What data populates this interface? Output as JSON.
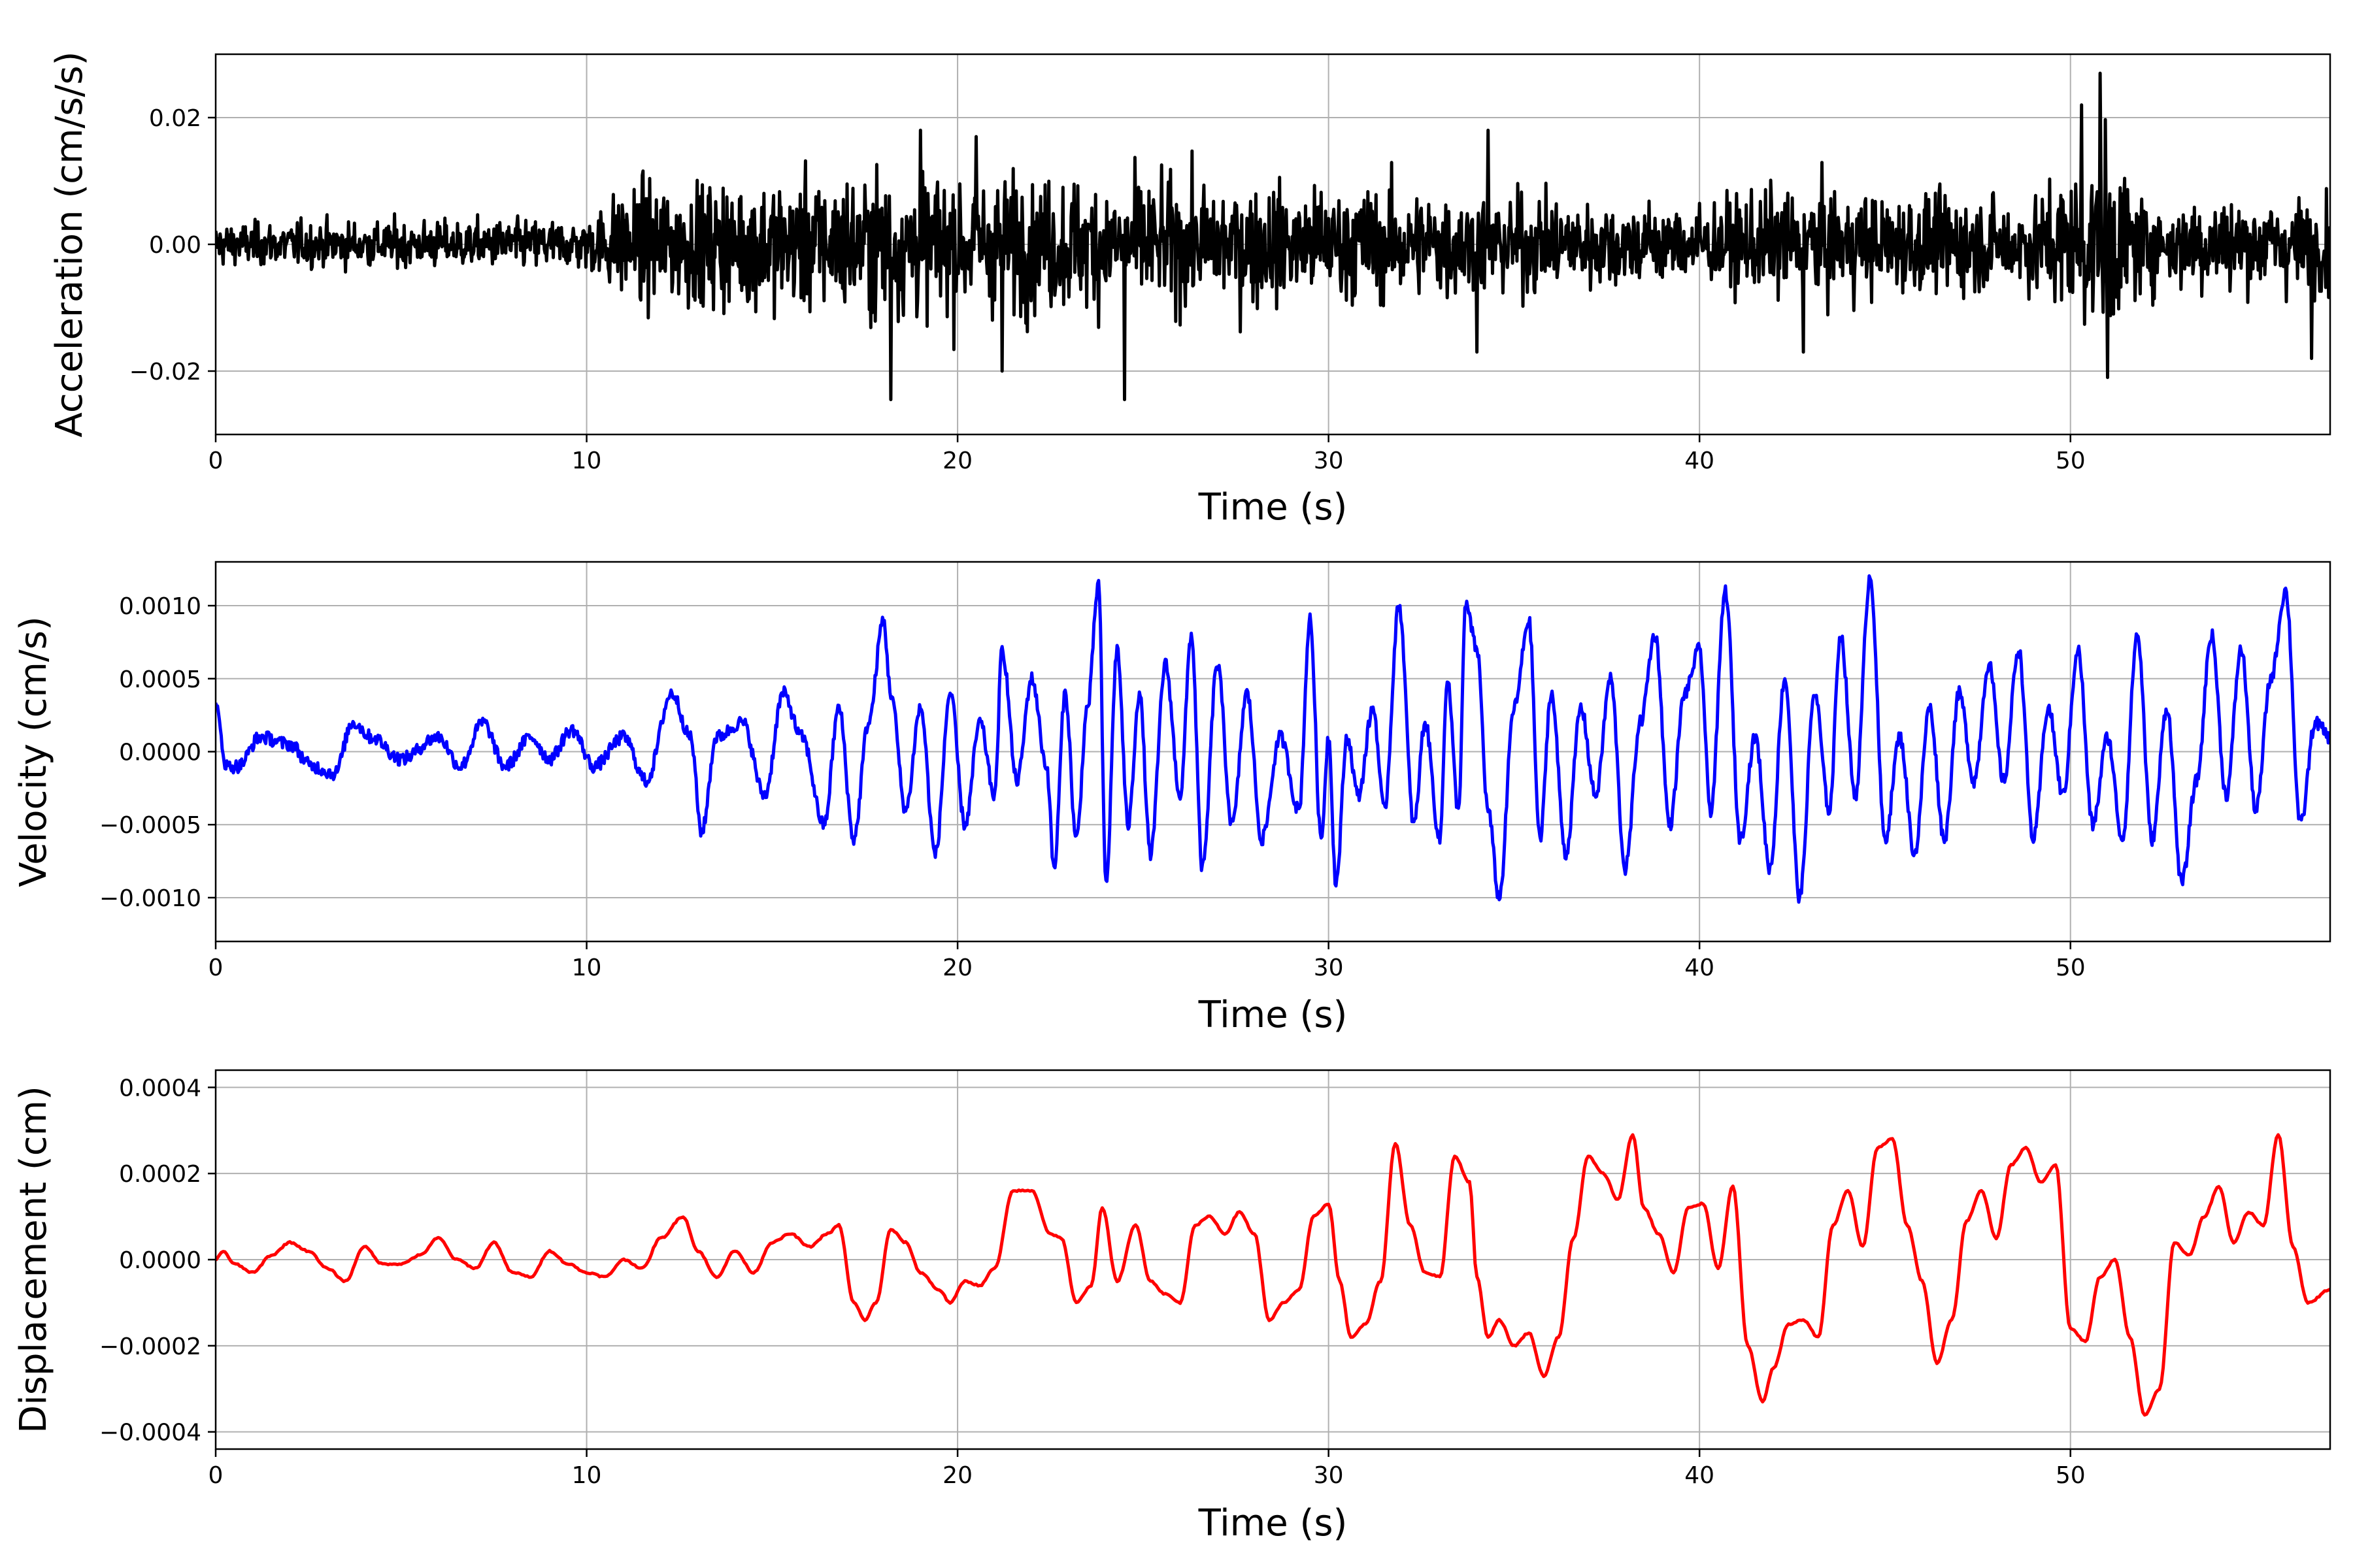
{
  "chart_data": [
    {
      "type": "line",
      "id": "acceleration",
      "xlabel": "Time (s)",
      "ylabel": "Acceleration (cm/s/s)",
      "xlim": [
        0,
        57
      ],
      "ylim": [
        -0.03,
        0.03
      ],
      "xticks": [
        0,
        10,
        20,
        30,
        40,
        50
      ],
      "xtick_labels": [
        "0",
        "10",
        "20",
        "30",
        "40",
        "50"
      ],
      "yticks": [
        -0.02,
        0.0,
        0.02
      ],
      "ytick_labels": [
        "−0.02",
        "0.00",
        "0.02"
      ],
      "grid": true,
      "color": "#000000",
      "sampling_dt": 0.02,
      "envelope": {
        "t": [
          0,
          10,
          11,
          18,
          25,
          33,
          40,
          42,
          49,
          50,
          51,
          52,
          57
        ],
        "amp": [
          0.0025,
          0.003,
          0.007,
          0.0085,
          0.0075,
          0.0065,
          0.0045,
          0.0065,
          0.0055,
          0.009,
          0.011,
          0.0055,
          0.0055
        ]
      },
      "peaks": [
        {
          "t": 18.2,
          "v": -0.0245
        },
        {
          "t": 19.0,
          "v": 0.018
        },
        {
          "t": 20.5,
          "v": 0.017
        },
        {
          "t": 21.2,
          "v": -0.02
        },
        {
          "t": 24.5,
          "v": -0.0245
        },
        {
          "t": 34.3,
          "v": 0.018
        },
        {
          "t": 34.0,
          "v": -0.017
        },
        {
          "t": 42.8,
          "v": -0.017
        },
        {
          "t": 50.8,
          "v": 0.027
        },
        {
          "t": 51.0,
          "v": -0.021
        },
        {
          "t": 50.3,
          "v": 0.022
        },
        {
          "t": 56.5,
          "v": -0.018
        }
      ]
    },
    {
      "type": "line",
      "id": "velocity",
      "xlabel": "Time (s)",
      "ylabel": "Velocity (cm/s)",
      "xlim": [
        0,
        57
      ],
      "ylim": [
        -0.0013,
        0.0013
      ],
      "xticks": [
        0,
        10,
        20,
        30,
        40,
        50
      ],
      "xtick_labels": [
        "0",
        "10",
        "20",
        "30",
        "40",
        "50"
      ],
      "yticks": [
        -0.001,
        -0.0005,
        0.0,
        0.0005,
        0.001
      ],
      "ytick_labels": [
        "−0.0010",
        "−0.0005",
        "0.0000",
        "0.0005",
        "0.0010"
      ],
      "grid": true,
      "color": "#0000ff",
      "x": [
        0,
        0.3,
        0.6,
        1.2,
        2.0,
        2.6,
        3.2,
        3.7,
        4.2,
        5.0,
        6.0,
        6.6,
        7.2,
        7.8,
        8.5,
        9.0,
        9.6,
        10.2,
        11.0,
        11.6,
        12.3,
        12.8,
        13.1,
        13.5,
        14.2,
        14.8,
        15.3,
        15.8,
        16.4,
        16.8,
        17.2,
        17.6,
        18.0,
        18.2,
        18.6,
        19.0,
        19.4,
        19.8,
        20.2,
        20.6,
        21.0,
        21.2,
        21.6,
        22.0,
        22.4,
        22.6,
        22.9,
        23.2,
        23.5,
        23.8,
        24.0,
        24.3,
        24.6,
        24.9,
        25.2,
        25.6,
        26.0,
        26.3,
        26.6,
        27.0,
        27.4,
        27.8,
        28.2,
        28.7,
        29.2,
        29.5,
        29.8,
        30.0,
        30.2,
        30.5,
        30.8,
        31.2,
        31.5,
        31.9,
        32.3,
        32.6,
        33.0,
        33.2,
        33.5,
        33.7,
        34.0,
        34.3,
        34.6,
        35.0,
        35.4,
        35.7,
        36.0,
        36.4,
        36.8,
        37.2,
        37.6,
        38.0,
        38.4,
        38.8,
        39.2,
        39.6,
        40.0,
        40.3,
        40.7,
        41.1,
        41.5,
        41.9,
        42.3,
        42.7,
        43.1,
        43.5,
        43.8,
        44.2,
        44.6,
        45.0,
        45.4,
        45.8,
        46.2,
        46.6,
        47.0,
        47.4,
        47.8,
        48.2,
        48.6,
        49.0,
        49.4,
        49.8,
        50.2,
        50.6,
        51.0,
        51.4,
        51.8,
        52.2,
        52.6,
        53.0,
        53.4,
        53.8,
        54.2,
        54.6,
        55.0,
        55.4,
        55.8,
        56.2,
        56.6,
        57.0
      ],
      "y": [
        0.0003,
        -0.0001,
        -0.0001,
        0.0001,
        5e-05,
        -0.0001,
        -0.00015,
        0.0002,
        0.0001,
        -5e-05,
        0.0001,
        -0.0001,
        0.0002,
        -0.0001,
        0.0001,
        -5e-05,
        0.00015,
        -0.0001,
        0.0001,
        -0.0002,
        0.0004,
        0.0001,
        -0.00055,
        0.0001,
        0.0002,
        -0.0003,
        0.0004,
        0.0001,
        -0.0005,
        0.0003,
        -0.0006,
        0.0002,
        0.0009,
        0.0004,
        -0.0004,
        0.0003,
        -0.0007,
        0.0004,
        -0.0005,
        0.0002,
        -0.0003,
        0.0007,
        -0.0002,
        0.0005,
        -0.0001,
        -0.0008,
        0.0004,
        -0.0006,
        0.0003,
        0.00115,
        -0.0009,
        0.0007,
        -0.0005,
        0.0004,
        -0.0007,
        0.0006,
        -0.0003,
        0.0008,
        -0.0008,
        0.0006,
        -0.0005,
        0.0004,
        -0.0006,
        0.0001,
        -0.0004,
        0.0009,
        -0.0006,
        0.0001,
        -0.0009,
        0.0001,
        -0.0003,
        0.0003,
        -0.0004,
        0.001,
        -0.0005,
        0.0002,
        -0.0006,
        0.0005,
        -0.0004,
        0.001,
        0.0007,
        -0.0004,
        -0.001,
        0.0003,
        0.0009,
        -0.0006,
        0.0004,
        -0.0007,
        0.0003,
        -0.0003,
        0.0005,
        -0.0008,
        0.0002,
        0.0008,
        -0.0005,
        0.0004,
        0.0007,
        -0.0004,
        0.0011,
        -0.0006,
        0.0001,
        -0.0008,
        0.0005,
        -0.001,
        0.0004,
        -0.0004,
        0.0008,
        -0.0003,
        0.0012,
        -0.0006,
        0.0001,
        -0.0007,
        0.0003,
        -0.0006,
        0.0004,
        -0.0002,
        0.0006,
        -0.0002,
        0.0007,
        -0.0006,
        0.0003,
        -0.0003,
        0.0007,
        -0.0005,
        0.0001,
        -0.0006,
        0.0008,
        -0.0006,
        0.0003,
        -0.0009,
        -0.0002,
        0.0008,
        -0.0003,
        0.0007,
        -0.0004,
        0.0005,
        0.0011,
        -0.0005,
        0.0002,
        0.0001
      ]
    },
    {
      "type": "line",
      "id": "displacement",
      "xlabel": "Time (s)",
      "ylabel": "Displacement (cm)",
      "xlim": [
        0,
        57
      ],
      "ylim": [
        -0.00044,
        0.00044
      ],
      "xticks": [
        0,
        10,
        20,
        30,
        40,
        50
      ],
      "xtick_labels": [
        "0",
        "10",
        "20",
        "30",
        "40",
        "50"
      ],
      "yticks": [
        -0.0004,
        -0.0002,
        0.0,
        0.0002,
        0.0004
      ],
      "ytick_labels": [
        "−0.0004",
        "−0.0002",
        "0.0000",
        "0.0002",
        "0.0004"
      ],
      "grid": true,
      "color": "#ff0000",
      "x": [
        0,
        0.2,
        0.5,
        1.0,
        1.5,
        2.0,
        2.5,
        3.0,
        3.5,
        4.0,
        4.5,
        5.0,
        5.5,
        6.0,
        6.5,
        7.0,
        7.5,
        8.0,
        8.5,
        9.0,
        9.5,
        10.0,
        10.5,
        11.0,
        11.5,
        12.0,
        12.6,
        13.0,
        13.5,
        14.0,
        14.5,
        15.0,
        15.5,
        16.0,
        16.5,
        16.8,
        17.2,
        17.5,
        17.8,
        18.2,
        18.6,
        19.0,
        19.5,
        19.8,
        20.2,
        20.6,
        21.0,
        21.5,
        22.0,
        22.5,
        22.8,
        23.2,
        23.6,
        23.9,
        24.3,
        24.8,
        25.2,
        25.6,
        26.0,
        26.4,
        26.8,
        27.2,
        27.6,
        28.0,
        28.4,
        28.8,
        29.2,
        29.6,
        30.0,
        30.3,
        30.6,
        31.0,
        31.4,
        31.8,
        32.2,
        32.6,
        33.0,
        33.4,
        33.8,
        34.0,
        34.3,
        34.6,
        35.0,
        35.4,
        35.8,
        36.2,
        36.6,
        37.0,
        37.4,
        37.8,
        38.2,
        38.5,
        38.9,
        39.3,
        39.7,
        40.1,
        40.5,
        40.9,
        41.3,
        41.7,
        42.0,
        42.4,
        42.8,
        43.2,
        43.6,
        44.0,
        44.4,
        44.8,
        45.2,
        45.6,
        46.0,
        46.4,
        46.8,
        47.2,
        47.6,
        48.0,
        48.4,
        48.8,
        49.2,
        49.6,
        50.0,
        50.4,
        50.8,
        51.2,
        51.6,
        52.0,
        52.4,
        52.8,
        53.2,
        53.6,
        54.0,
        54.4,
        54.8,
        55.2,
        55.6,
        56.0,
        56.4,
        57.0
      ],
      "y": [
        0.0,
        2e-05,
        -1e-05,
        -3e-05,
        1e-05,
        4e-05,
        2e-05,
        -2e-05,
        -5e-05,
        3e-05,
        -1e-05,
        -1e-05,
        1e-05,
        5e-05,
        0.0,
        -2e-05,
        4e-05,
        -3e-05,
        -4e-05,
        2e-05,
        -1e-05,
        -3e-05,
        -4e-05,
        0.0,
        -2e-05,
        5e-05,
        0.0001,
        2e-05,
        -4e-05,
        2e-05,
        -3e-05,
        4e-05,
        6e-05,
        3e-05,
        6e-05,
        8e-05,
        -0.0001,
        -0.00014,
        -0.0001,
        7e-05,
        4e-05,
        -3e-05,
        -7e-05,
        -0.0001,
        -5e-05,
        -6e-05,
        -2e-05,
        0.00016,
        0.00016,
        6e-05,
        5e-05,
        -0.0001,
        -6e-05,
        0.00012,
        -5e-05,
        8e-05,
        -5e-05,
        -8e-05,
        -0.0001,
        8e-05,
        0.0001,
        6e-05,
        0.00011,
        6e-05,
        -0.00014,
        -0.0001,
        -7e-05,
        0.0001,
        0.00013,
        -5e-05,
        -0.00018,
        -0.00015,
        -5e-05,
        0.00027,
        8e-05,
        -3e-05,
        -4e-05,
        0.00024,
        0.00018,
        -4e-05,
        -0.00018,
        -0.00014,
        -0.0002,
        -0.00017,
        -0.00027,
        -0.00018,
        5e-05,
        0.00024,
        0.0002,
        0.00014,
        0.00029,
        0.00012,
        6e-05,
        -3e-05,
        0.00012,
        0.00013,
        -2e-05,
        0.00017,
        -0.0002,
        -0.00033,
        -0.00025,
        -0.00015,
        -0.00014,
        -0.00018,
        8e-05,
        0.00016,
        3e-05,
        0.00026,
        0.00028,
        8e-05,
        -5e-05,
        -0.00024,
        -0.00014,
        9e-05,
        0.00016,
        5e-05,
        0.00022,
        0.00026,
        0.00018,
        0.00022,
        -0.00016,
        -0.00019,
        -4e-05,
        0.0,
        -0.00018,
        -0.00036,
        -0.0003,
        4e-05,
        1e-05,
        0.0001,
        0.00017,
        4e-05,
        0.00011,
        8e-05,
        0.00029,
        3e-05,
        -0.0001,
        -7e-05
      ]
    }
  ]
}
